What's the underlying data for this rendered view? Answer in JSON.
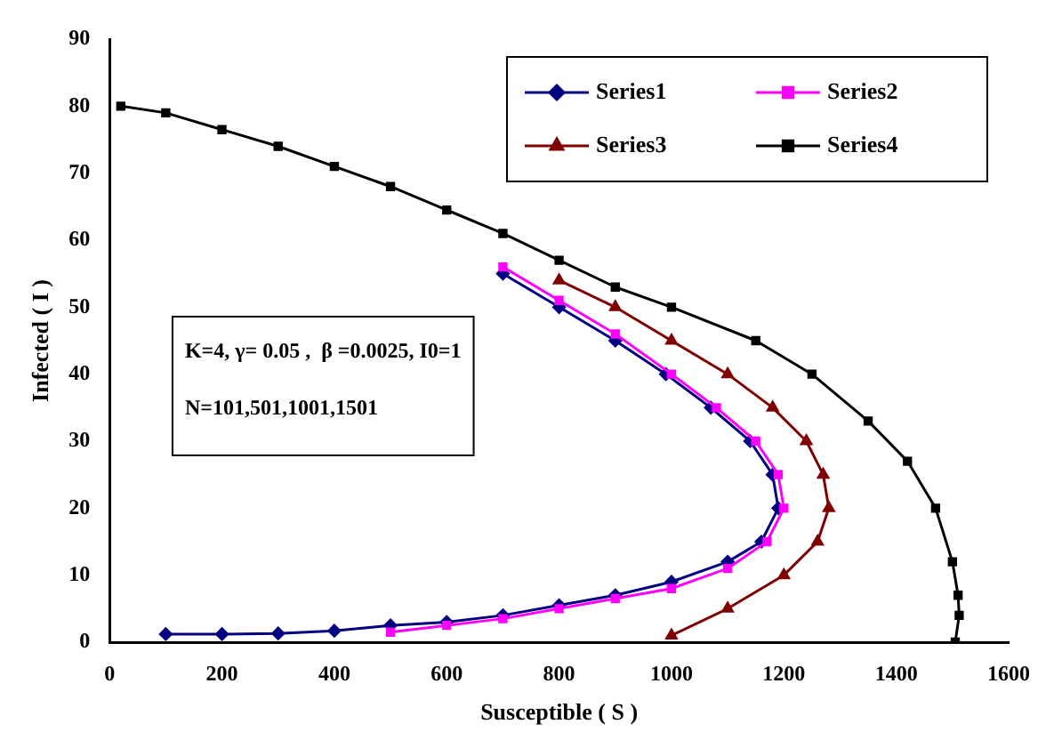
{
  "chart_data": {
    "type": "line",
    "xlabel": "Susceptible ( S )",
    "ylabel": "Infected ( I )",
    "xlim": [
      0,
      1600
    ],
    "xticks": [
      0,
      200,
      400,
      600,
      800,
      1000,
      1200,
      1400,
      1600
    ],
    "ylim": [
      0,
      90
    ],
    "yticks": [
      0,
      10,
      20,
      30,
      40,
      50,
      60,
      70,
      80,
      90
    ],
    "grid": false,
    "legend": "top right",
    "annotations": [
      "K=4, γ= 0.05 ,  β =0.0025, I0=1",
      "N=101,501,1001,1501"
    ],
    "series": [
      {
        "name": "Series1",
        "color": "#000080",
        "marker": "diamond",
        "x": [
          100,
          200,
          300,
          400,
          500,
          600,
          700,
          800,
          900,
          1000,
          1100,
          1160,
          1190,
          1180,
          1140,
          1070,
          990,
          900,
          800,
          700
        ],
        "values": [
          1.2,
          1.2,
          1.3,
          1.7,
          2.5,
          3,
          4,
          5.5,
          7,
          9,
          12,
          15,
          20,
          25,
          30,
          35,
          40,
          45,
          50,
          55
        ]
      },
      {
        "name": "Series2",
        "color": "#ff00ff",
        "marker": "square",
        "x": [
          500,
          600,
          700,
          800,
          900,
          1000,
          1100,
          1170,
          1200,
          1190,
          1150,
          1080,
          1000,
          900,
          800,
          700
        ],
        "values": [
          1.5,
          2.5,
          3.5,
          5,
          6.5,
          8,
          11,
          15,
          20,
          25,
          30,
          35,
          40,
          46,
          51,
          56
        ]
      },
      {
        "name": "Series3",
        "color": "#800000",
        "marker": "triangle",
        "x": [
          1000,
          1100,
          1200,
          1260,
          1280,
          1270,
          1240,
          1180,
          1100,
          1000,
          900,
          800
        ],
        "values": [
          1,
          5,
          10,
          15,
          20,
          25,
          30,
          35,
          40,
          45,
          50,
          54
        ]
      },
      {
        "name": "Series4",
        "color": "#000000",
        "marker": "square",
        "x": [
          1505,
          1512,
          1510,
          1500,
          1470,
          1420,
          1350,
          1250,
          1150,
          1000,
          900,
          800,
          700,
          600,
          500,
          400,
          300,
          200,
          100,
          20
        ],
        "values": [
          0,
          4,
          7,
          12,
          20,
          27,
          33,
          40,
          45,
          50,
          53,
          57,
          61,
          64.5,
          68,
          71,
          74,
          76.5,
          79,
          80
        ]
      }
    ]
  }
}
